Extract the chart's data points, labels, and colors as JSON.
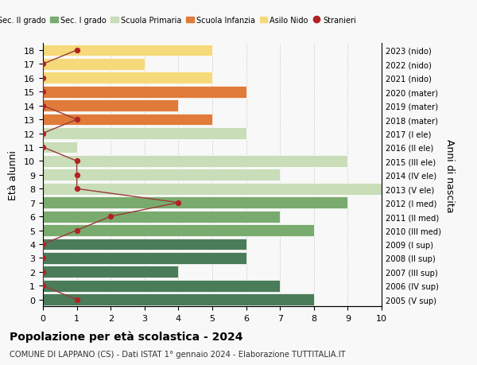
{
  "ages": [
    18,
    17,
    16,
    15,
    14,
    13,
    12,
    11,
    10,
    9,
    8,
    7,
    6,
    5,
    4,
    3,
    2,
    1,
    0
  ],
  "years": [
    "2005 (V sup)",
    "2006 (IV sup)",
    "2007 (III sup)",
    "2008 (II sup)",
    "2009 (I sup)",
    "2010 (III med)",
    "2011 (II med)",
    "2012 (I med)",
    "2013 (V ele)",
    "2014 (IV ele)",
    "2015 (III ele)",
    "2016 (II ele)",
    "2017 (I ele)",
    "2018 (mater)",
    "2019 (mater)",
    "2020 (mater)",
    "2021 (nido)",
    "2022 (nido)",
    "2023 (nido)"
  ],
  "bar_values": [
    8,
    7,
    4,
    6,
    6,
    8,
    7,
    9,
    10,
    7,
    9,
    1,
    6,
    5,
    4,
    6,
    5,
    3,
    5
  ],
  "bar_colors": [
    "#4a7c59",
    "#4a7c59",
    "#4a7c59",
    "#4a7c59",
    "#4a7c59",
    "#7aab6e",
    "#7aab6e",
    "#7aab6e",
    "#c8ddb8",
    "#c8ddb8",
    "#c8ddb8",
    "#c8ddb8",
    "#c8ddb8",
    "#e07b39",
    "#e07b39",
    "#e07b39",
    "#f5d97a",
    "#f5d97a",
    "#f5d97a"
  ],
  "stranieri_values": [
    1,
    0,
    0,
    0,
    0,
    1,
    2,
    4,
    1,
    1,
    1,
    0,
    0,
    1,
    0,
    0,
    0,
    0,
    1
  ],
  "legend_labels": [
    "Sec. II grado",
    "Sec. I grado",
    "Scuola Primaria",
    "Scuola Infanzia",
    "Asilo Nido",
    "Stranieri"
  ],
  "legend_colors": [
    "#4a7c59",
    "#7aab6e",
    "#c8ddb8",
    "#e07b39",
    "#f5d97a",
    "#b22222"
  ],
  "ylabel": "Età alunni",
  "right_label": "Anni di nascita",
  "title": "Popolazione per età scolastica - 2024",
  "subtitle": "COMUNE DI LAPPANO (CS) - Dati ISTAT 1° gennaio 2024 - Elaborazione TUTTITALIA.IT",
  "xlim": [
    0,
    10
  ],
  "background_color": "#f8f8f8",
  "grid_color": "#cccccc",
  "stranieri_color": "#b22222",
  "stranieri_line_color": "#9b3a3a"
}
